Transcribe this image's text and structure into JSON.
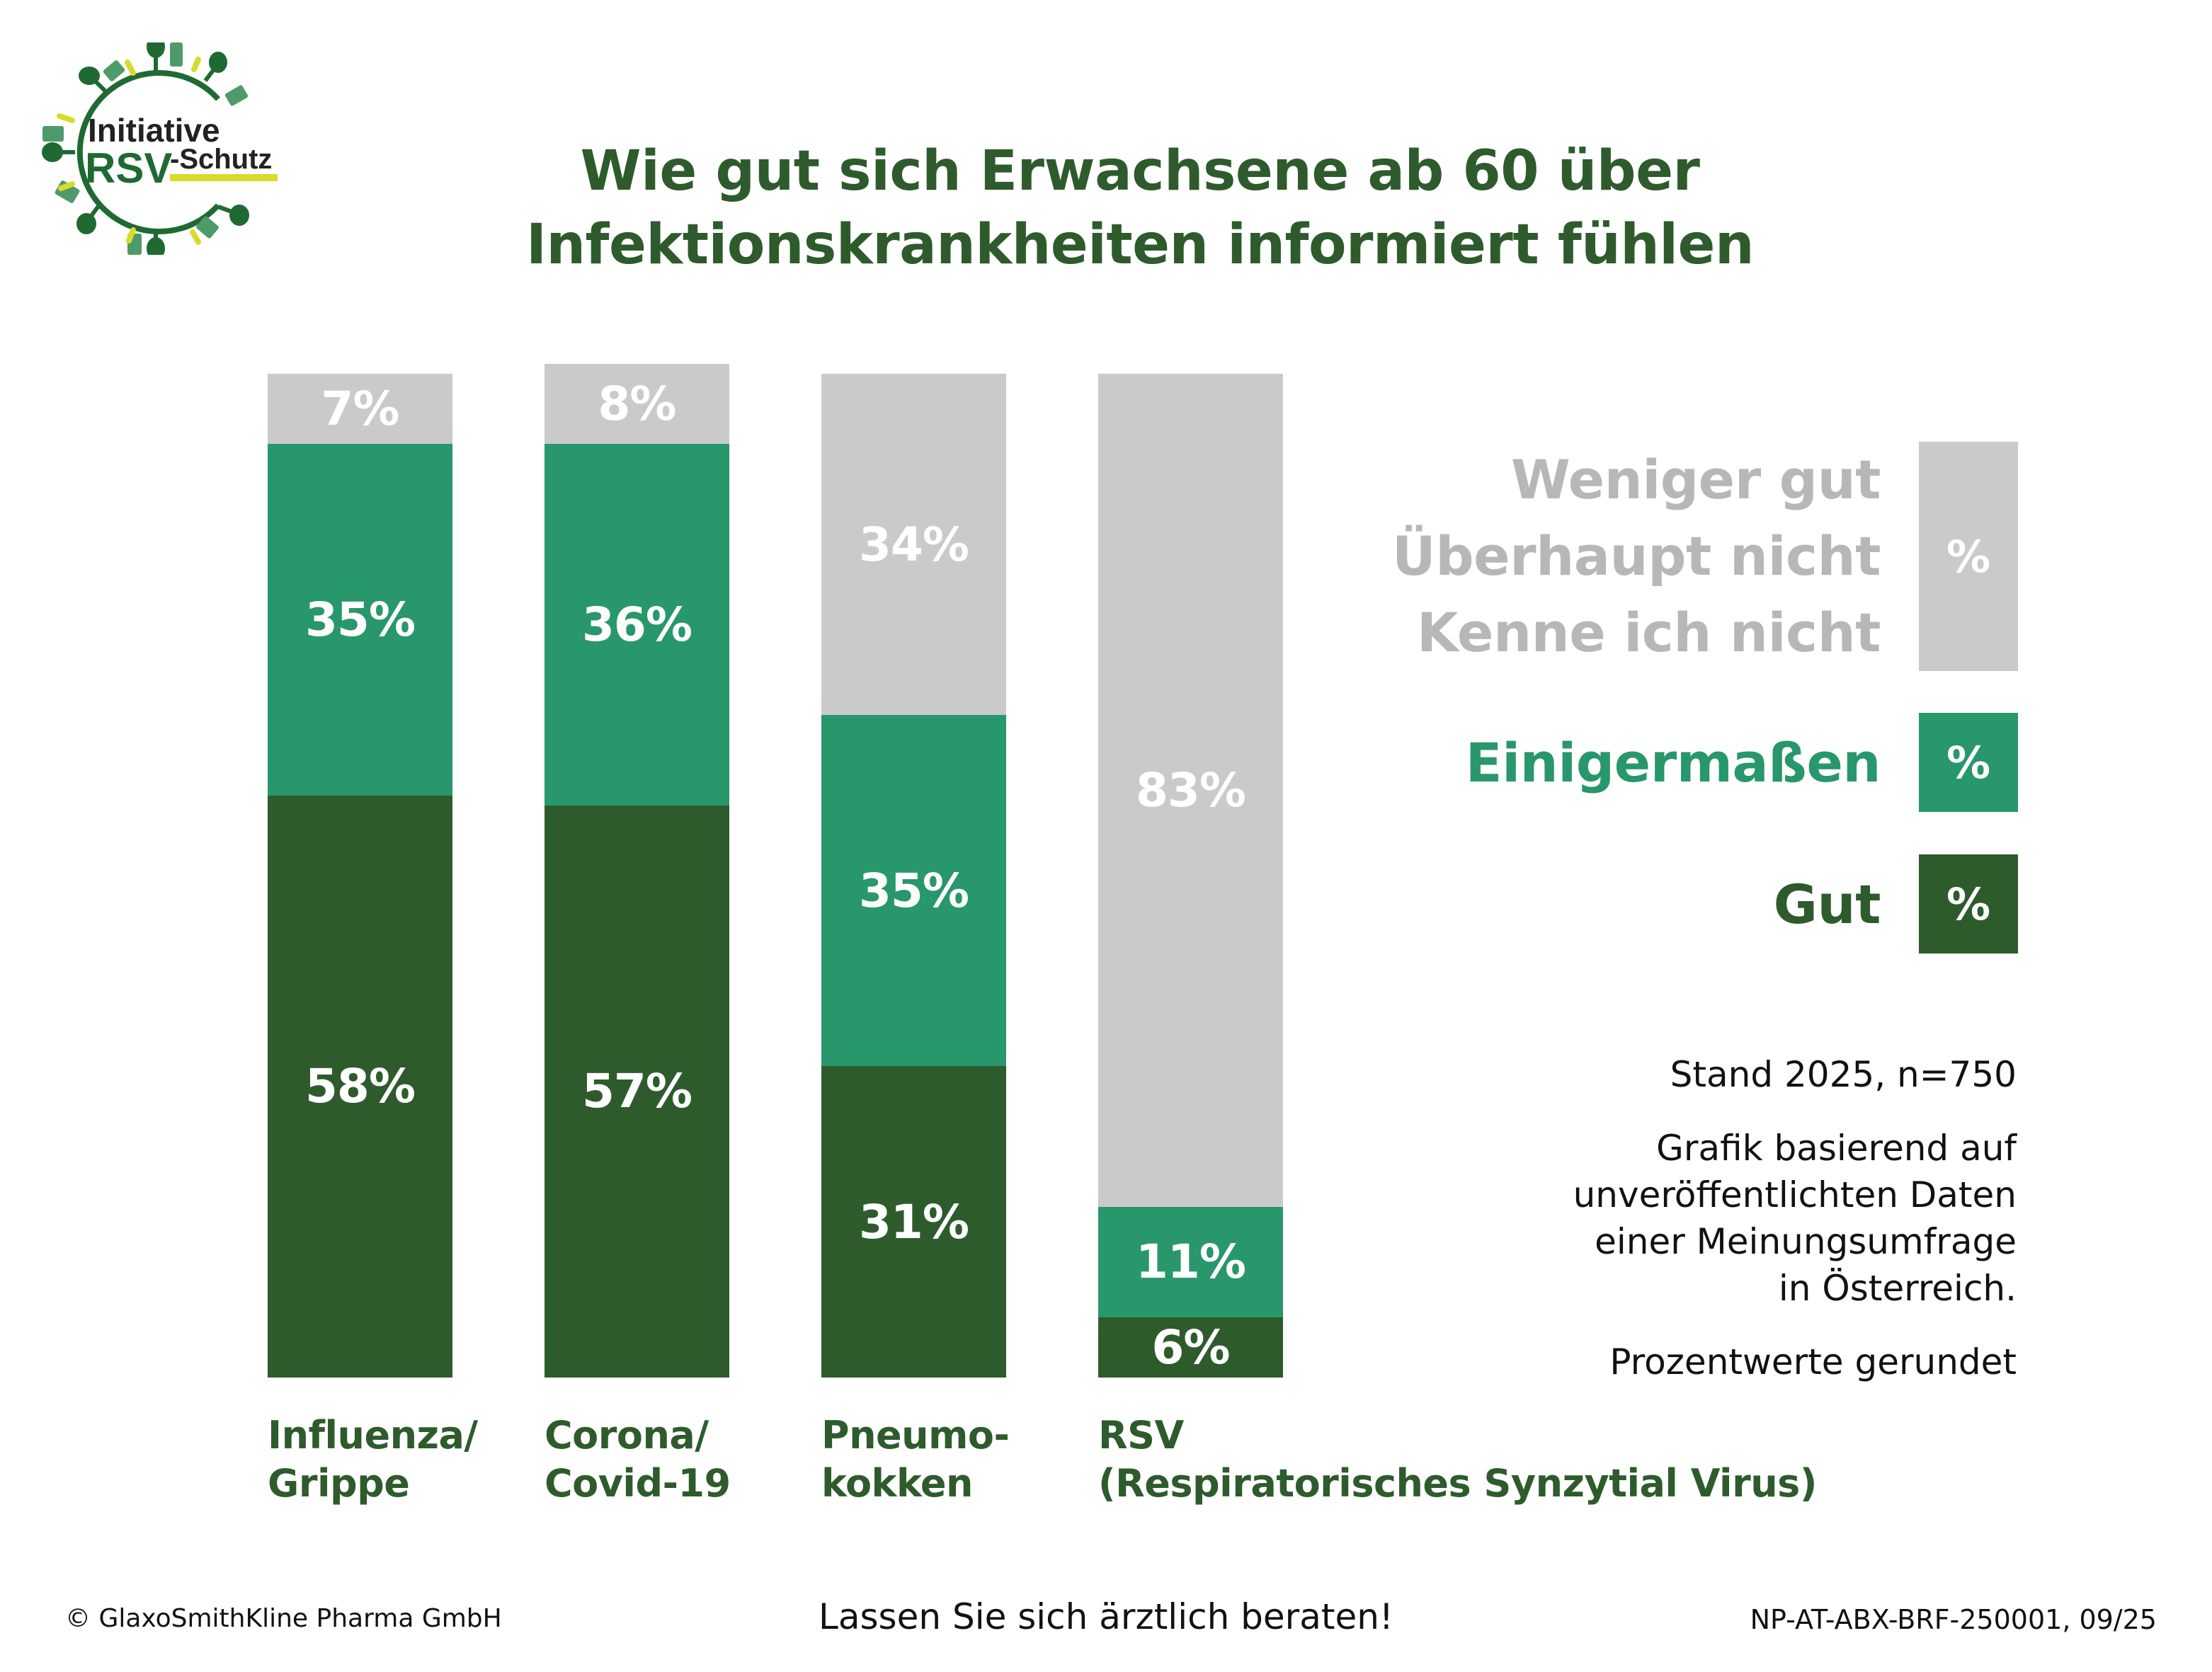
{
  "logo": {
    "line1": "Initiative",
    "line2_brand": "RSV",
    "line2_rest": "-Schutz",
    "colors": {
      "dark_green": "#1f6a32",
      "mid_green": "#4f9a6a",
      "yellow": "#d7dc2a",
      "text": "#222222"
    }
  },
  "colors": {
    "title": "#2e5b2c",
    "gut": "#2e5b2c",
    "einigermassen": "#28976b",
    "weniger": "#cacaca",
    "legend_weniger_text": "#b7b8b6"
  },
  "chart_data": {
    "type": "bar",
    "stacked": true,
    "title": "Wie gut sich Erwachsene ab 60 über Infektionskrankheiten informiert fühlen",
    "title_lines": [
      "Wie gut sich Erwachsene ab 60 über",
      "Infektionskrankheiten informiert fühlen"
    ],
    "xlabel": "",
    "ylabel": "",
    "ylim": [
      0,
      100
    ],
    "grid": false,
    "legend_position": "right",
    "categories": [
      "Influenza/ Grippe",
      "Corona/ Covid-19",
      "Pneumo-kokken",
      "RSV (Respiratorisches Synzytial Virus)"
    ],
    "category_label_lines": [
      [
        "Influenza/",
        "Grippe"
      ],
      [
        "Corona/",
        "Covid-19"
      ],
      [
        "Pneumo-",
        "kokken"
      ],
      [
        "RSV",
        "(Respiratorisches Synzytial Virus)"
      ]
    ],
    "series": [
      {
        "name": "Gut",
        "color": "#2e5b2c",
        "values": [
          58,
          57,
          31,
          6
        ]
      },
      {
        "name": "Einigermaßen",
        "color": "#28976b",
        "values": [
          35,
          36,
          35,
          11
        ]
      },
      {
        "name": "Weniger gut / Überhaupt nicht / Kenne ich nicht",
        "color": "#cacaca",
        "values": [
          7,
          8,
          34,
          83
        ]
      }
    ],
    "value_suffix": "%"
  },
  "legend": {
    "items": [
      {
        "lines": [
          "Weniger gut",
          "Überhaupt nicht",
          "Kenne ich nicht"
        ],
        "swatch_label": "%",
        "key": "weniger"
      },
      {
        "lines": [
          "Einigermaßen"
        ],
        "swatch_label": "%",
        "key": "einigermassen"
      },
      {
        "lines": [
          "Gut"
        ],
        "swatch_label": "%",
        "key": "gut"
      }
    ]
  },
  "notes": {
    "stand": "Stand 2025, n=750",
    "source_lines": [
      "Grafik basierend auf",
      "unveröffentlichten Daten",
      "einer Meinungsumfrage",
      "in Österreich."
    ],
    "rounding": "Prozentwerte gerundet"
  },
  "footer": {
    "copyright": "© GlaxoSmithKline Pharma GmbH",
    "advice": "Lassen Sie sich ärztlich beraten!",
    "code": "NP-AT-ABX-BRF-250001, 09/25"
  }
}
